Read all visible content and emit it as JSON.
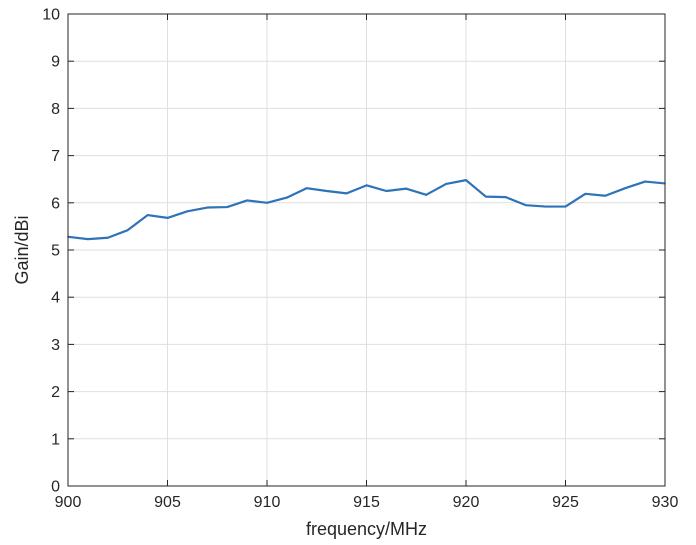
{
  "chart_data": {
    "type": "line",
    "title": "",
    "xlabel": "frequency/MHz",
    "ylabel": "Gain/dBi",
    "xlim": [
      900,
      930
    ],
    "ylim": [
      0,
      10
    ],
    "xticks": [
      "900",
      "905",
      "910",
      "915",
      "920",
      "925",
      "930"
    ],
    "yticks": [
      "0",
      "1",
      "2",
      "3",
      "4",
      "5",
      "6",
      "7",
      "8",
      "9",
      "10"
    ],
    "grid": true,
    "series": [
      {
        "color": "#2e73b8",
        "x": [
          900,
          901,
          902,
          903,
          904,
          905,
          906,
          907,
          908,
          909,
          910,
          911,
          912,
          913,
          914,
          915,
          916,
          917,
          918,
          919,
          920,
          921,
          922,
          923,
          924,
          925,
          926,
          927,
          928,
          929,
          930
        ],
        "y": [
          5.28,
          5.23,
          5.26,
          5.42,
          5.74,
          5.68,
          5.82,
          5.9,
          5.91,
          6.05,
          6.0,
          6.11,
          6.31,
          6.25,
          6.2,
          6.37,
          6.25,
          6.3,
          6.17,
          6.4,
          6.48,
          6.13,
          6.12,
          5.95,
          5.92,
          5.92,
          6.19,
          6.15,
          6.31,
          6.45,
          6.41
        ]
      }
    ]
  }
}
